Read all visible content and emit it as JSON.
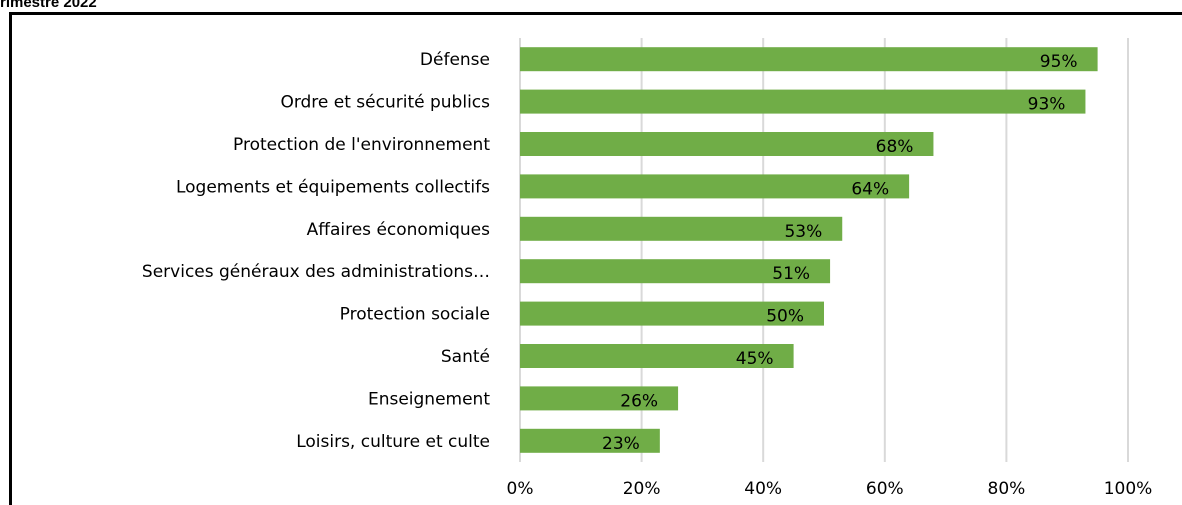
{
  "page": {
    "top_title": "rimestre 2022"
  },
  "chart_data": {
    "type": "bar",
    "orientation": "horizontal",
    "categories": [
      "Défense",
      "Ordre et sécurité publics",
      "Protection de l'environnement",
      "Logements et équipements collectifs",
      "Affaires économiques",
      "Services généraux des administrations…",
      "Protection sociale",
      "Santé",
      "Enseignement",
      "Loisirs, culture et culte"
    ],
    "values": [
      95,
      93,
      68,
      64,
      53,
      51,
      50,
      45,
      26,
      23
    ],
    "data_labels": [
      "95%",
      "93%",
      "68%",
      "64%",
      "53%",
      "51%",
      "50%",
      "45%",
      "26%",
      "23%"
    ],
    "xlim": [
      0,
      100
    ],
    "x_ticks": [
      "0%",
      "20%",
      "40%",
      "60%",
      "80%",
      "100%"
    ],
    "grid": true,
    "bar_color": "#70AD47",
    "grid_color": "#D9D9D9"
  }
}
